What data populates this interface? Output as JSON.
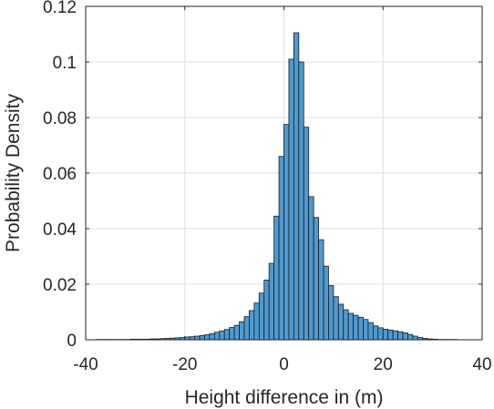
{
  "chart_data": {
    "type": "bar",
    "title": "",
    "xlabel": "Height difference in (m)",
    "ylabel": "Probability Density",
    "xlim": [
      -40,
      40
    ],
    "ylim": [
      0,
      0.12
    ],
    "grid": true,
    "legend": "none",
    "bin_width": 1,
    "x_ticks": [
      "-40",
      "-20",
      "0",
      "20",
      "40"
    ],
    "y_ticks": [
      "0",
      "0.02",
      "0.04",
      "0.06",
      "0.08",
      "0.1",
      "0.12"
    ],
    "bar_color": "#4f9ad0",
    "edge_color": "#1a1a1a",
    "bins": [
      {
        "x": -37.5,
        "value": 0.0001
      },
      {
        "x": -36.5,
        "value": 0.0001
      },
      {
        "x": -35.5,
        "value": 0.0001
      },
      {
        "x": -34.5,
        "value": 0.0001
      },
      {
        "x": -33.5,
        "value": 0.0001
      },
      {
        "x": -32.5,
        "value": 0.0001
      },
      {
        "x": -31.5,
        "value": 0.0001
      },
      {
        "x": -30.5,
        "value": 0.0002
      },
      {
        "x": -29.5,
        "value": 0.0002
      },
      {
        "x": -28.5,
        "value": 0.0002
      },
      {
        "x": -27.5,
        "value": 0.0002
      },
      {
        "x": -26.5,
        "value": 0.0003
      },
      {
        "x": -25.5,
        "value": 0.0003
      },
      {
        "x": -24.5,
        "value": 0.0004
      },
      {
        "x": -23.5,
        "value": 0.0005
      },
      {
        "x": -22.5,
        "value": 0.0006
      },
      {
        "x": -21.5,
        "value": 0.0007
      },
      {
        "x": -20.5,
        "value": 0.0008
      },
      {
        "x": -19.5,
        "value": 0.001
      },
      {
        "x": -18.5,
        "value": 0.0011
      },
      {
        "x": -17.5,
        "value": 0.0013
      },
      {
        "x": -16.5,
        "value": 0.0015
      },
      {
        "x": -15.5,
        "value": 0.0018
      },
      {
        "x": -14.5,
        "value": 0.0022
      },
      {
        "x": -13.5,
        "value": 0.0027
      },
      {
        "x": -12.5,
        "value": 0.0032
      },
      {
        "x": -11.5,
        "value": 0.0037
      },
      {
        "x": -10.5,
        "value": 0.0044
      },
      {
        "x": -9.5,
        "value": 0.0052
      },
      {
        "x": -8.5,
        "value": 0.0065
      },
      {
        "x": -7.5,
        "value": 0.0083
      },
      {
        "x": -6.5,
        "value": 0.0105
      },
      {
        "x": -5.5,
        "value": 0.0132
      },
      {
        "x": -4.5,
        "value": 0.0168
      },
      {
        "x": -3.5,
        "value": 0.0215
      },
      {
        "x": -2.5,
        "value": 0.0275
      },
      {
        "x": -1.5,
        "value": 0.0445
      },
      {
        "x": -0.5,
        "value": 0.066
      },
      {
        "x": 0.5,
        "value": 0.0775
      },
      {
        "x": 1.5,
        "value": 0.101
      },
      {
        "x": 2.5,
        "value": 0.1105
      },
      {
        "x": 3.5,
        "value": 0.1
      },
      {
        "x": 4.5,
        "value": 0.0765
      },
      {
        "x": 5.5,
        "value": 0.0515
      },
      {
        "x": 6.5,
        "value": 0.044
      },
      {
        "x": 7.5,
        "value": 0.036
      },
      {
        "x": 8.5,
        "value": 0.0265
      },
      {
        "x": 9.5,
        "value": 0.0195
      },
      {
        "x": 10.5,
        "value": 0.0155
      },
      {
        "x": 11.5,
        "value": 0.0128
      },
      {
        "x": 12.5,
        "value": 0.0108
      },
      {
        "x": 13.5,
        "value": 0.0095
      },
      {
        "x": 14.5,
        "value": 0.0088
      },
      {
        "x": 15.5,
        "value": 0.0081
      },
      {
        "x": 16.5,
        "value": 0.0073
      },
      {
        "x": 17.5,
        "value": 0.0062
      },
      {
        "x": 18.5,
        "value": 0.005
      },
      {
        "x": 19.5,
        "value": 0.0043
      },
      {
        "x": 20.5,
        "value": 0.0038
      },
      {
        "x": 21.5,
        "value": 0.0035
      },
      {
        "x": 22.5,
        "value": 0.0032
      },
      {
        "x": 23.5,
        "value": 0.0029
      },
      {
        "x": 24.5,
        "value": 0.0025
      },
      {
        "x": 25.5,
        "value": 0.0019
      },
      {
        "x": 26.5,
        "value": 0.0013
      },
      {
        "x": 27.5,
        "value": 0.0008
      },
      {
        "x": 28.5,
        "value": 0.0005
      },
      {
        "x": 29.5,
        "value": 0.0003
      },
      {
        "x": 30.5,
        "value": 0.0002
      },
      {
        "x": 31.5,
        "value": 0.0001
      },
      {
        "x": 32.5,
        "value": 0.0001
      },
      {
        "x": 33.5,
        "value": 0.0001
      },
      {
        "x": 34.5,
        "value": 0.0001
      }
    ]
  }
}
